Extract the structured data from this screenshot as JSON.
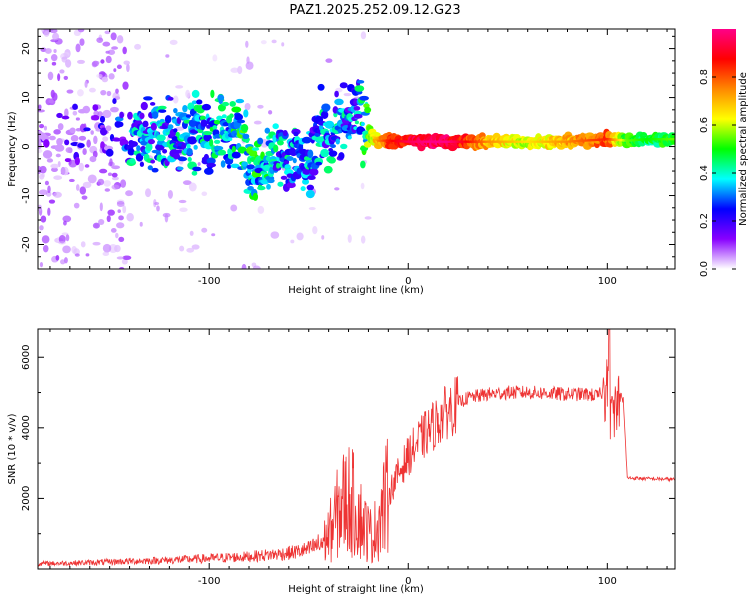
{
  "title": "PAZ1.2025.252.09.12.G23",
  "chart_data": [
    {
      "type": "heatmap",
      "name": "spectrogram",
      "xlabel": "Height of straight line (km)",
      "ylabel": "Frequency (Hz)",
      "xlim": [
        -186,
        134
      ],
      "ylim": [
        -25,
        24
      ],
      "xticks": [
        -100,
        0,
        100
      ],
      "xtick_labels": [
        "-100",
        "0",
        "100"
      ],
      "yticks": [
        -20,
        -10,
        0,
        10,
        20
      ],
      "ytick_labels": [
        "-20",
        "-10",
        "0",
        "10",
        "20"
      ],
      "colorbar": {
        "label": "Normalized spectral amplitude",
        "range": [
          0,
          1
        ],
        "ticks": [
          0,
          0.2,
          0.4,
          0.6,
          0.8
        ],
        "tick_labels": [
          "0.0",
          "0.2",
          "0.4",
          "0.6",
          "0.8"
        ],
        "colors": [
          "#ffffff",
          "#8800ff",
          "#0000ff",
          "#00ffff",
          "#00ff00",
          "#ffff00",
          "#ff8800",
          "#ff0000",
          "#ff0088"
        ]
      },
      "ridge": {
        "x": [
          -186,
          -150,
          -140,
          -120,
          -100,
          -90,
          -82,
          -78,
          -70,
          -62,
          -55,
          -50,
          -45,
          -40,
          -35,
          -30,
          -25,
          -20,
          -15,
          -10,
          0,
          10,
          20,
          40,
          60,
          80,
          100,
          110,
          120,
          134
        ],
        "f": [
          2,
          2,
          2.3,
          2,
          2.5,
          2.5,
          1.5,
          -4,
          -1,
          -3,
          -2,
          -6,
          3,
          3,
          4,
          5,
          6,
          3,
          1.2,
          1.2,
          1,
          1,
          1,
          1,
          1,
          1,
          1.5,
          1.2,
          1.5,
          1.5
        ],
        "amplitude": [
          0.05,
          0.1,
          0.3,
          0.3,
          0.35,
          0.35,
          0.4,
          0.4,
          0.35,
          0.3,
          0.3,
          0.3,
          0.3,
          0.3,
          0.3,
          0.3,
          0.3,
          0.5,
          0.7,
          0.8,
          0.9,
          0.95,
          0.95,
          0.7,
          0.6,
          0.7,
          0.8,
          0.5,
          0.45,
          0.5
        ]
      }
    },
    {
      "type": "line",
      "name": "snr",
      "xlabel": "Height of straight line (km)",
      "ylabel": "SNR (10 * v/v)",
      "xlim": [
        -186,
        134
      ],
      "ylim": [
        0,
        6800
      ],
      "xticks": [
        -100,
        0,
        100
      ],
      "xtick_labels": [
        "-100",
        "0",
        "100"
      ],
      "yticks": [
        2000,
        4000,
        6000
      ],
      "ytick_labels": [
        "2000",
        "4000",
        "6000"
      ],
      "color": "#ee3333",
      "x": [
        -186,
        -160,
        -140,
        -120,
        -100,
        -80,
        -60,
        -50,
        -42,
        -38,
        -34,
        -30,
        -26,
        -22,
        -18,
        -14,
        -10,
        -5,
        0,
        5,
        10,
        15,
        20,
        25,
        30,
        40,
        50,
        60,
        70,
        80,
        90,
        95,
        100,
        102,
        105,
        108,
        110,
        120,
        134
      ],
      "y": [
        150,
        180,
        220,
        250,
        300,
        350,
        450,
        550,
        800,
        1200,
        1800,
        2000,
        1700,
        1200,
        900,
        1500,
        2100,
        2700,
        3200,
        3600,
        3900,
        4200,
        4500,
        4700,
        4850,
        4950,
        5000,
        5000,
        4980,
        4950,
        4950,
        4900,
        5100,
        4200,
        4850,
        4800,
        2580,
        2560,
        2540
      ]
    }
  ]
}
